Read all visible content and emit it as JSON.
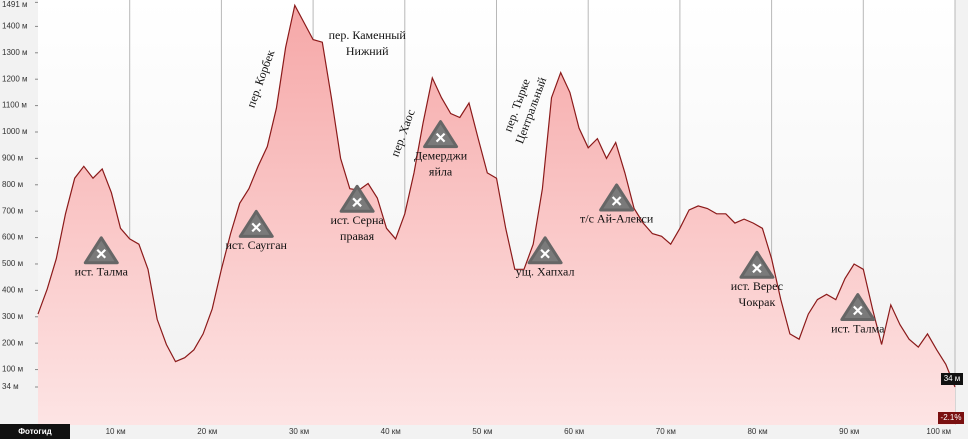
{
  "chart_data": {
    "type": "area",
    "x": [
      0,
      1,
      2,
      3,
      4,
      5,
      6,
      7,
      8,
      9,
      10,
      11,
      12,
      13,
      14,
      15,
      16,
      17,
      18,
      19,
      20,
      21,
      22,
      23,
      24,
      25,
      26,
      27,
      28,
      29,
      30,
      31,
      32,
      33,
      34,
      35,
      36,
      37,
      38,
      39,
      40,
      41,
      42,
      43,
      44,
      45,
      46,
      47,
      48,
      49,
      50,
      51,
      52,
      53,
      54,
      55,
      56,
      57,
      58,
      59,
      60,
      61,
      62,
      63,
      64,
      65,
      66,
      67,
      68,
      69,
      70,
      71,
      72,
      73,
      74,
      75,
      76,
      77,
      78,
      79,
      80,
      81,
      82,
      83,
      84,
      85,
      86,
      87,
      88,
      89,
      90,
      91,
      92,
      93,
      94,
      95,
      96,
      97,
      98,
      99,
      100
    ],
    "series": [
      {
        "color": "#8b1a1a",
        "fill": "#f6a8a8",
        "values": [
          310,
          405,
          520,
          690,
          825,
          870,
          825,
          860,
          770,
          635,
          595,
          575,
          480,
          290,
          195,
          130,
          145,
          175,
          235,
          330,
          480,
          615,
          730,
          785,
          870,
          945,
          1090,
          1320,
          1480,
          1415,
          1350,
          1340,
          1130,
          900,
          785,
          780,
          805,
          750,
          635,
          595,
          690,
          845,
          1035,
          1205,
          1130,
          1070,
          1055,
          1110,
          975,
          845,
          825,
          635,
          480,
          480,
          575,
          785,
          1130,
          1225,
          1150,
          1015,
          940,
          975,
          900,
          960,
          845,
          710,
          655,
          615,
          605,
          575,
          635,
          705,
          720,
          710,
          690,
          690,
          655,
          670,
          655,
          635,
          520,
          365,
          235,
          215,
          310,
          365,
          385,
          365,
          445,
          500,
          480,
          330,
          195,
          345,
          270,
          215,
          185,
          235,
          175,
          120,
          34
        ]
      }
    ],
    "xlim": [
      0,
      100
    ],
    "ylim": [
      -110,
      1500
    ],
    "xticks": [
      {
        "value": 10,
        "label": "10 км"
      },
      {
        "value": 20,
        "label": "20 км"
      },
      {
        "value": 30,
        "label": "30 км"
      },
      {
        "value": 40,
        "label": "40 км"
      },
      {
        "value": 50,
        "label": "50 км"
      },
      {
        "value": 60,
        "label": "60 км"
      },
      {
        "value": 70,
        "label": "70 км"
      },
      {
        "value": 80,
        "label": "80 км"
      },
      {
        "value": 90,
        "label": "90 км"
      },
      {
        "value": 100,
        "label": "100 км"
      }
    ],
    "yticks": [
      {
        "value": 1491,
        "label": "1491 м"
      },
      {
        "value": 1400,
        "label": "1400 м"
      },
      {
        "value": 1300,
        "label": "1300 м"
      },
      {
        "value": 1200,
        "label": "1200 м"
      },
      {
        "value": 1100,
        "label": "1100 м"
      },
      {
        "value": 1000,
        "label": "1000 м"
      },
      {
        "value": 900,
        "label": "900 м"
      },
      {
        "value": 800,
        "label": "800 м"
      },
      {
        "value": 700,
        "label": "700 м"
      },
      {
        "value": 600,
        "label": "600 м"
      },
      {
        "value": 500,
        "label": "500 м"
      },
      {
        "value": 400,
        "label": "400 м"
      },
      {
        "value": 300,
        "label": "300 м"
      },
      {
        "value": 200,
        "label": "200 м"
      },
      {
        "value": 100,
        "label": "100 м"
      },
      {
        "value": 34,
        "label": "34 м"
      }
    ],
    "grid": true,
    "markers": [
      {
        "text": [
          "ист. Талма"
        ],
        "x": 6.9,
        "y": 550
      },
      {
        "text": [
          "ист. Сауrган"
        ],
        "x": 23.8,
        "y": 650
      },
      {
        "text": [
          "ист. Серна",
          "правая"
        ],
        "x": 34.8,
        "y": 745
      },
      {
        "text": [
          "Демерджи",
          "яйла"
        ],
        "x": 43.9,
        "y": 990
      },
      {
        "text": [
          "ущ. Хапхал"
        ],
        "x": 55.3,
        "y": 550
      },
      {
        "text": [
          "т/с Ай-Алекси"
        ],
        "x": 63.1,
        "y": 750
      },
      {
        "text": [
          "ист. Верес",
          "Чокрак"
        ],
        "x": 78.4,
        "y": 495
      },
      {
        "text": [
          "ист. Талма"
        ],
        "x": 89.4,
        "y": 335
      }
    ],
    "passes": [
      {
        "text": [
          "пер. Корбек"
        ],
        "x": 24.4,
        "y": 1200
      },
      {
        "text": [
          "пер. Хаос"
        ],
        "x": 39.9,
        "y": 995
      },
      {
        "text": [
          "пер. Тырке",
          "Центральный"
        ],
        "x": 53.1,
        "y": 1090
      }
    ],
    "notes": [
      {
        "text": [
          "пер. Каменный",
          "Нижний"
        ],
        "x": 35.9,
        "y": 1363
      }
    ],
    "end_label": "34 м",
    "grade_label": "-2.1%",
    "logo": "Фотогид"
  }
}
